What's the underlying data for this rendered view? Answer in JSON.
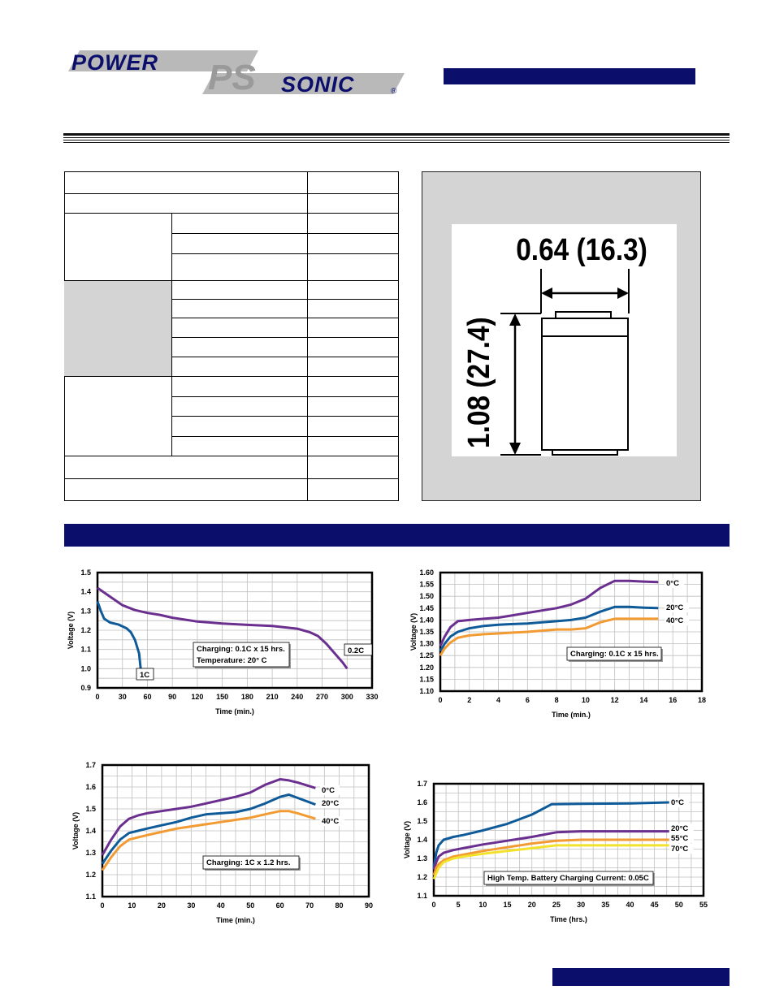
{
  "header": {
    "logo_word_left": "POWER",
    "logo_mark": "PS",
    "logo_word_right": "SONIC",
    "logo_registered": "®"
  },
  "drawing": {
    "width_label": "0.64 (16.3)",
    "height_label": "1.08 (27.4)"
  },
  "colors": {
    "navy": "#0b0f6b",
    "purple": "#6b2f8f",
    "blue": "#0f5b9a",
    "orange": "#f29b33",
    "yellow": "#f2e22c"
  },
  "chart_data": [
    {
      "type": "line",
      "xlabel": "Time (min.)",
      "ylabel": "Voltage (V)",
      "xlim": [
        0,
        330
      ],
      "ylim": [
        0.9,
        1.5
      ],
      "xticks": [
        0,
        30,
        60,
        90,
        120,
        150,
        180,
        210,
        240,
        270,
        300,
        330
      ],
      "yticks": [
        "0.9",
        "1.0",
        "1.1",
        "1.2",
        "1.3",
        "1.4",
        "1.5"
      ],
      "series": [
        {
          "name": "1C",
          "color": "#0f5b9a",
          "x": [
            0,
            4,
            8,
            15,
            25,
            35,
            40,
            45,
            50,
            52
          ],
          "y": [
            1.35,
            1.3,
            1.26,
            1.24,
            1.23,
            1.21,
            1.19,
            1.15,
            1.08,
            0.995
          ]
        },
        {
          "name": "0.2C",
          "color": "#6b2f8f",
          "x": [
            0,
            10,
            20,
            30,
            45,
            60,
            75,
            90,
            120,
            150,
            180,
            210,
            240,
            255,
            265,
            275,
            285,
            295,
            300
          ],
          "y": [
            1.42,
            1.39,
            1.36,
            1.33,
            1.305,
            1.29,
            1.28,
            1.265,
            1.245,
            1.235,
            1.228,
            1.222,
            1.208,
            1.19,
            1.17,
            1.13,
            1.08,
            1.03,
            1.0
          ]
        }
      ],
      "annotations": [
        "Charging: 0.1C x 15 hrs.",
        "Temperature: 20° C"
      ]
    },
    {
      "type": "line",
      "xlabel": "Time (min.)",
      "ylabel": "Voltage (V)",
      "xlim": [
        0,
        18
      ],
      "ylim": [
        1.1,
        1.6
      ],
      "xticks": [
        0,
        2,
        4,
        6,
        8,
        10,
        12,
        14,
        16,
        18
      ],
      "yticks": [
        "1.10",
        "1.15",
        "1.20",
        "1.25",
        "1.30",
        "1.35",
        "1.40",
        "1.45",
        "1.50",
        "1.55",
        "1.60"
      ],
      "series": [
        {
          "name": "0°C",
          "color": "#6b2f8f",
          "x": [
            0,
            0.3,
            0.7,
            1.2,
            2,
            3,
            4,
            5,
            6,
            7,
            8,
            9,
            10,
            11,
            12,
            13,
            14,
            15
          ],
          "y": [
            1.29,
            1.33,
            1.37,
            1.395,
            1.4,
            1.405,
            1.41,
            1.42,
            1.43,
            1.44,
            1.45,
            1.465,
            1.49,
            1.535,
            1.565,
            1.565,
            1.562,
            1.56
          ]
        },
        {
          "name": "20°C",
          "color": "#0f5b9a",
          "x": [
            0,
            0.3,
            0.7,
            1.2,
            2,
            3,
            4,
            5,
            6,
            7,
            8,
            9,
            10,
            11,
            12,
            13,
            14,
            15
          ],
          "y": [
            1.27,
            1.3,
            1.33,
            1.35,
            1.365,
            1.375,
            1.38,
            1.383,
            1.385,
            1.39,
            1.395,
            1.4,
            1.41,
            1.435,
            1.455,
            1.455,
            1.452,
            1.45
          ]
        },
        {
          "name": "40°C",
          "color": "#f29b33",
          "x": [
            0,
            0.3,
            0.7,
            1.2,
            2,
            3,
            4,
            5,
            6,
            7,
            8,
            9,
            10,
            11,
            12,
            13,
            14,
            15
          ],
          "y": [
            1.25,
            1.28,
            1.305,
            1.325,
            1.335,
            1.34,
            1.343,
            1.347,
            1.35,
            1.355,
            1.36,
            1.36,
            1.365,
            1.39,
            1.405,
            1.405,
            1.405,
            1.405
          ]
        }
      ],
      "annotations": [
        "Charging: 0.1C x 15 hrs."
      ]
    },
    {
      "type": "line",
      "xlabel": "Time (min.)",
      "ylabel": "Voltage (V)",
      "xlim": [
        0,
        90
      ],
      "ylim": [
        1.1,
        1.7
      ],
      "xticks": [
        0,
        10,
        20,
        30,
        40,
        50,
        60,
        70,
        80,
        90
      ],
      "yticks": [
        "1.1",
        "1.2",
        "1.3",
        "1.4",
        "1.5",
        "1.6",
        "1.7"
      ],
      "series": [
        {
          "name": "0°C",
          "color": "#6b2f8f",
          "x": [
            0,
            3,
            6,
            9,
            12,
            15,
            20,
            25,
            30,
            35,
            40,
            45,
            50,
            55,
            60,
            63,
            66,
            72
          ],
          "y": [
            1.29,
            1.36,
            1.42,
            1.455,
            1.47,
            1.48,
            1.49,
            1.5,
            1.51,
            1.525,
            1.54,
            1.555,
            1.575,
            1.61,
            1.635,
            1.63,
            1.62,
            1.595
          ]
        },
        {
          "name": "20°C",
          "color": "#0f5b9a",
          "x": [
            0,
            3,
            6,
            9,
            12,
            15,
            20,
            25,
            30,
            35,
            40,
            45,
            50,
            55,
            60,
            63,
            66,
            72
          ],
          "y": [
            1.25,
            1.31,
            1.36,
            1.39,
            1.4,
            1.41,
            1.425,
            1.44,
            1.46,
            1.475,
            1.48,
            1.485,
            1.5,
            1.525,
            1.555,
            1.565,
            1.55,
            1.52
          ]
        },
        {
          "name": "40°C",
          "color": "#f29b33",
          "x": [
            0,
            3,
            6,
            9,
            12,
            15,
            20,
            25,
            30,
            35,
            40,
            45,
            50,
            55,
            60,
            63,
            66,
            72
          ],
          "y": [
            1.22,
            1.28,
            1.33,
            1.36,
            1.37,
            1.38,
            1.395,
            1.41,
            1.42,
            1.43,
            1.44,
            1.45,
            1.46,
            1.475,
            1.49,
            1.49,
            1.48,
            1.455
          ]
        }
      ],
      "annotations": [
        "Charging: 1C x 1.2 hrs."
      ]
    },
    {
      "type": "line",
      "xlabel": "Time (hrs.)",
      "ylabel": "Voltage (V)",
      "xlim": [
        0,
        55
      ],
      "ylim": [
        1.1,
        1.7
      ],
      "xticks": [
        0,
        5,
        10,
        15,
        20,
        25,
        30,
        35,
        40,
        45,
        50,
        55
      ],
      "yticks": [
        "1.1",
        "1.2",
        "1.3",
        "1.4",
        "1.5",
        "1.6",
        "1.7"
      ],
      "series": [
        {
          "name": "0°C",
          "color": "#0f5b9a",
          "x": [
            0,
            0.5,
            1,
            2,
            4,
            6,
            10,
            15,
            20,
            24,
            30,
            40,
            48
          ],
          "y": [
            1.25,
            1.33,
            1.37,
            1.4,
            1.415,
            1.425,
            1.45,
            1.485,
            1.535,
            1.59,
            1.592,
            1.595,
            1.6
          ]
        },
        {
          "name": "20°C",
          "color": "#6b2f8f",
          "x": [
            0,
            0.5,
            1,
            2,
            4,
            6,
            10,
            15,
            20,
            25,
            30,
            40,
            48
          ],
          "y": [
            1.24,
            1.28,
            1.31,
            1.33,
            1.345,
            1.355,
            1.375,
            1.395,
            1.415,
            1.44,
            1.445,
            1.445,
            1.445
          ]
        },
        {
          "name": "55°C",
          "color": "#f29b33",
          "x": [
            0,
            0.5,
            1,
            2,
            4,
            6,
            10,
            15,
            20,
            25,
            30,
            40,
            48
          ],
          "y": [
            1.21,
            1.25,
            1.27,
            1.29,
            1.31,
            1.32,
            1.34,
            1.36,
            1.38,
            1.395,
            1.4,
            1.4,
            1.4
          ]
        },
        {
          "name": "70°C",
          "color": "#f2e22c",
          "x": [
            0,
            0.5,
            1,
            2,
            4,
            6,
            10,
            15,
            20,
            25,
            30,
            40,
            48
          ],
          "y": [
            1.19,
            1.22,
            1.25,
            1.28,
            1.3,
            1.31,
            1.325,
            1.34,
            1.355,
            1.37,
            1.37,
            1.37,
            1.37
          ]
        }
      ],
      "annotations": [
        "High Temp. Battery Charging Current: 0.05C"
      ]
    }
  ]
}
